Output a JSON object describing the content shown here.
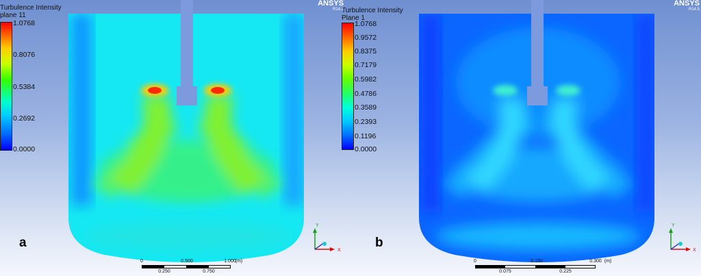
{
  "panels": [
    {
      "label": "a",
      "legend": {
        "title": "Turbulence Intensity",
        "subtitle": "plane 11",
        "ticks": [
          "1.0768",
          "0.8076",
          "0.5384",
          "0.2692",
          "0.0000"
        ]
      },
      "brand": "ANSYS",
      "version": "R14.5",
      "scalebar": {
        "top_labels": [
          "0",
          "0.500",
          "1.000",
          "(m)"
        ],
        "bottom_labels": [
          "0.250",
          "0.750"
        ]
      },
      "axes": {
        "y": "Y",
        "x": "X"
      }
    },
    {
      "label": "b",
      "legend": {
        "title": "Turbulence Intensity",
        "subtitle": "Plane 1",
        "ticks": [
          "1.0768",
          "0.9572",
          "0.8375",
          "0.7179",
          "0.5982",
          "0.4786",
          "0.3589",
          "0.2393",
          "0.1196",
          "0.0000"
        ]
      },
      "brand": "ANSYS",
      "version": "R14.5",
      "scalebar": {
        "top_labels": [
          "0",
          "0.150",
          "0.300",
          "(m)"
        ],
        "bottom_labels": [
          "0.075",
          "0.225"
        ]
      },
      "axes": {
        "y": "Y",
        "x": "X"
      }
    }
  ],
  "colors": {
    "shaft": "#7e9adf",
    "field_low": "#0a4dff",
    "field_mid": "#00e5ff",
    "field_high": "#7dff00",
    "field_peak": "#ff2a00"
  }
}
